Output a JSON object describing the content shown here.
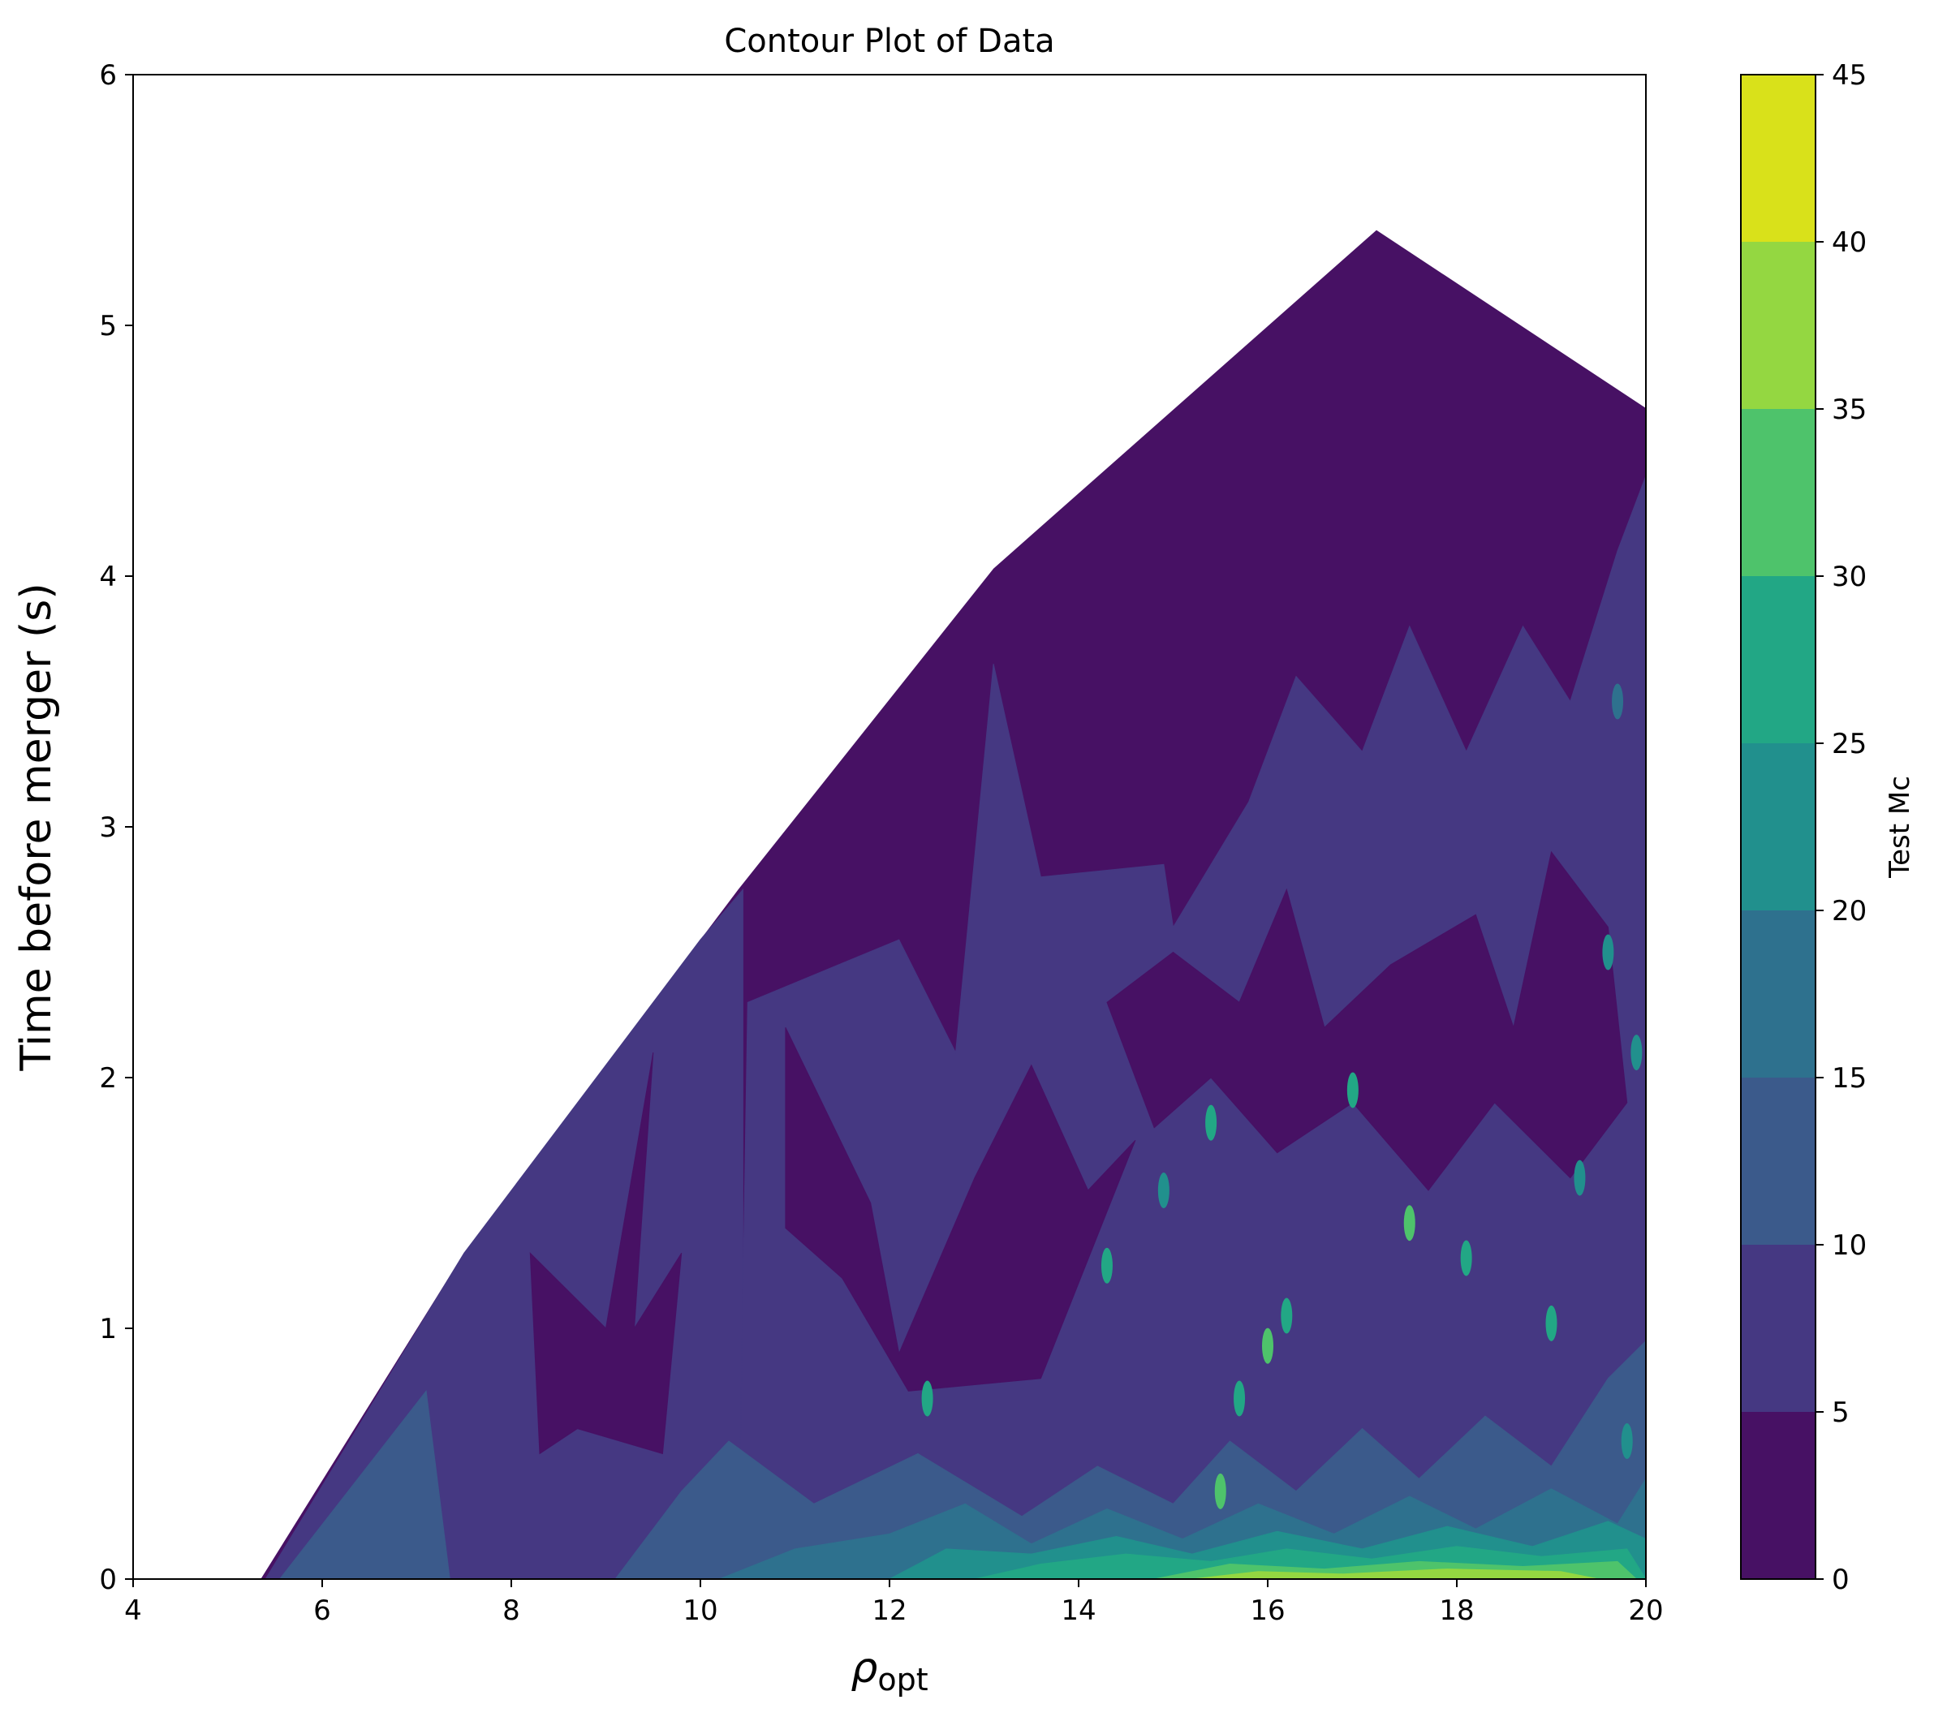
{
  "chart_data": {
    "type": "contourf",
    "title": "Contour Plot of Data",
    "xlabel": "ρ",
    "xlabel_subscript": "opt",
    "ylabel": "Time before merger (s)",
    "xlim": [
      4,
      20
    ],
    "ylim": [
      0,
      6
    ],
    "xticks": [
      "4",
      "6",
      "8",
      "10",
      "12",
      "14",
      "16",
      "18",
      "20"
    ],
    "yticks": [
      "0",
      "1",
      "2",
      "3",
      "4",
      "5",
      "6"
    ],
    "colorbar": {
      "label": "Test Mc",
      "levels": [
        0,
        5,
        10,
        15,
        20,
        25,
        30,
        35,
        40,
        45
      ],
      "tick_labels": [
        "0",
        "5",
        "10",
        "15",
        "20",
        "25",
        "30",
        "35",
        "40",
        "45"
      ],
      "colors": [
        "#471164",
        "#453882",
        "#3b5a8b",
        "#2e718e",
        "#21908d",
        "#22a785",
        "#4ec36b",
        "#94d741",
        "#d9e11a"
      ]
    },
    "data_hull": [
      [
        5.35,
        0.0
      ],
      [
        7.5,
        1.3
      ],
      [
        10.4,
        2.75
      ],
      [
        13.1,
        4.03
      ],
      [
        17.15,
        5.38
      ],
      [
        20.0,
        4.67
      ],
      [
        20.0,
        0.0
      ]
    ],
    "regions": [
      {
        "level": "5-10",
        "polygon": [
          [
            5.4,
            0.0
          ],
          [
            7.5,
            1.3
          ],
          [
            10.0,
            2.55
          ],
          [
            10.45,
            2.75
          ],
          [
            10.45,
            0.0
          ]
        ]
      },
      {
        "level": "5-10",
        "polygon": [
          [
            10.4,
            0.0
          ],
          [
            10.5,
            2.3
          ],
          [
            12.1,
            2.55
          ],
          [
            12.7,
            2.1
          ],
          [
            13.1,
            3.65
          ],
          [
            13.6,
            2.8
          ],
          [
            14.9,
            2.85
          ],
          [
            15.0,
            2.6
          ],
          [
            15.8,
            3.1
          ],
          [
            16.3,
            3.6
          ],
          [
            17.0,
            3.3
          ],
          [
            17.5,
            3.8
          ],
          [
            18.1,
            3.3
          ],
          [
            18.7,
            3.8
          ],
          [
            19.2,
            3.5
          ],
          [
            19.7,
            4.1
          ],
          [
            20.0,
            4.4
          ],
          [
            20.0,
            0.0
          ]
        ]
      },
      {
        "level": "0-5",
        "polygon": [
          [
            8.2,
            1.3
          ],
          [
            9.0,
            1.0
          ],
          [
            9.5,
            2.1
          ],
          [
            9.3,
            1.0
          ],
          [
            9.8,
            1.3
          ],
          [
            9.6,
            0.5
          ],
          [
            8.7,
            0.6
          ],
          [
            8.3,
            0.5
          ]
        ]
      },
      {
        "level": "0-5",
        "polygon": [
          [
            10.9,
            2.2
          ],
          [
            11.8,
            1.5
          ],
          [
            12.1,
            0.9
          ],
          [
            12.9,
            1.6
          ],
          [
            13.5,
            2.05
          ],
          [
            14.1,
            1.55
          ],
          [
            14.6,
            1.75
          ],
          [
            13.6,
            0.8
          ],
          [
            12.2,
            0.75
          ],
          [
            11.5,
            1.2
          ],
          [
            10.9,
            1.4
          ]
        ]
      },
      {
        "level": "0-5",
        "polygon": [
          [
            14.3,
            2.3
          ],
          [
            15.0,
            2.5
          ],
          [
            15.7,
            2.3
          ],
          [
            16.2,
            2.75
          ],
          [
            16.6,
            2.2
          ],
          [
            17.3,
            2.45
          ],
          [
            18.2,
            2.65
          ],
          [
            18.6,
            2.2
          ],
          [
            19.0,
            2.9
          ],
          [
            19.6,
            2.6
          ],
          [
            19.8,
            1.9
          ],
          [
            19.2,
            1.6
          ],
          [
            18.4,
            1.9
          ],
          [
            17.7,
            1.55
          ],
          [
            16.9,
            1.9
          ],
          [
            16.1,
            1.7
          ],
          [
            15.4,
            2.0
          ],
          [
            14.8,
            1.8
          ]
        ]
      },
      {
        "level": "10-15",
        "polygon": [
          [
            5.55,
            0.0
          ],
          [
            7.1,
            0.75
          ],
          [
            7.35,
            0.0
          ]
        ]
      },
      {
        "level": "10-15",
        "polygon": [
          [
            9.1,
            0.0
          ],
          [
            9.8,
            0.35
          ],
          [
            10.3,
            0.55
          ],
          [
            11.2,
            0.3
          ],
          [
            12.3,
            0.5
          ],
          [
            13.4,
            0.25
          ],
          [
            14.2,
            0.45
          ],
          [
            15.0,
            0.3
          ],
          [
            15.6,
            0.55
          ],
          [
            16.3,
            0.35
          ],
          [
            17.0,
            0.6
          ],
          [
            17.6,
            0.4
          ],
          [
            18.3,
            0.65
          ],
          [
            19.0,
            0.45
          ],
          [
            19.6,
            0.8
          ],
          [
            20.0,
            0.95
          ],
          [
            20.0,
            0.0
          ]
        ]
      },
      {
        "level": "15-20",
        "polygon": [
          [
            10.2,
            0.0
          ],
          [
            11.0,
            0.12
          ],
          [
            12.0,
            0.18
          ],
          [
            12.8,
            0.3
          ],
          [
            13.5,
            0.14
          ],
          [
            14.3,
            0.28
          ],
          [
            15.1,
            0.16
          ],
          [
            15.9,
            0.3
          ],
          [
            16.7,
            0.18
          ],
          [
            17.5,
            0.33
          ],
          [
            18.2,
            0.2
          ],
          [
            19.0,
            0.36
          ],
          [
            19.7,
            0.22
          ],
          [
            20.0,
            0.4
          ],
          [
            20.0,
            0.0
          ]
        ]
      },
      {
        "level": "20-25",
        "polygon": [
          [
            12.0,
            0.0
          ],
          [
            12.6,
            0.12
          ],
          [
            13.5,
            0.1
          ],
          [
            14.4,
            0.17
          ],
          [
            15.2,
            0.1
          ],
          [
            16.1,
            0.19
          ],
          [
            17.0,
            0.12
          ],
          [
            17.9,
            0.21
          ],
          [
            18.8,
            0.13
          ],
          [
            19.6,
            0.23
          ],
          [
            20.0,
            0.16
          ],
          [
            20.0,
            0.0
          ]
        ]
      },
      {
        "level": "25-30",
        "polygon": [
          [
            12.9,
            0.0
          ],
          [
            13.6,
            0.06
          ],
          [
            14.5,
            0.1
          ],
          [
            15.4,
            0.07
          ],
          [
            16.2,
            0.12
          ],
          [
            17.1,
            0.08
          ],
          [
            18.0,
            0.13
          ],
          [
            18.9,
            0.09
          ],
          [
            19.8,
            0.12
          ],
          [
            20.0,
            0.0
          ]
        ]
      },
      {
        "level": "30-35",
        "polygon": [
          [
            14.8,
            0.0
          ],
          [
            15.6,
            0.06
          ],
          [
            16.6,
            0.04
          ],
          [
            17.6,
            0.07
          ],
          [
            18.7,
            0.05
          ],
          [
            19.7,
            0.07
          ],
          [
            19.9,
            0.0
          ]
        ]
      },
      {
        "level": "35-40",
        "polygon": [
          [
            15.2,
            0.0
          ],
          [
            15.9,
            0.03
          ],
          [
            16.8,
            0.02
          ],
          [
            17.9,
            0.04
          ],
          [
            19.1,
            0.03
          ],
          [
            19.5,
            0.0
          ]
        ]
      }
    ],
    "highlights": [
      {
        "x": 15.4,
        "y": 1.82,
        "level": "25-30"
      },
      {
        "x": 16.9,
        "y": 1.95,
        "level": "25-30"
      },
      {
        "x": 17.5,
        "y": 1.42,
        "level": "30-35"
      },
      {
        "x": 16.2,
        "y": 1.05,
        "level": "25-30"
      },
      {
        "x": 16.0,
        "y": 0.93,
        "level": "30-35"
      },
      {
        "x": 15.7,
        "y": 0.72,
        "level": "25-30"
      },
      {
        "x": 14.3,
        "y": 1.25,
        "level": "25-30"
      },
      {
        "x": 12.4,
        "y": 0.72,
        "level": "25-30"
      },
      {
        "x": 18.1,
        "y": 1.28,
        "level": "25-30"
      },
      {
        "x": 19.0,
        "y": 1.02,
        "level": "25-30"
      },
      {
        "x": 19.3,
        "y": 1.6,
        "level": "20-25"
      },
      {
        "x": 19.6,
        "y": 2.5,
        "level": "20-25"
      },
      {
        "x": 19.9,
        "y": 2.1,
        "level": "20-25"
      },
      {
        "x": 15.5,
        "y": 0.35,
        "level": "30-35"
      },
      {
        "x": 19.8,
        "y": 0.55,
        "level": "20-25"
      },
      {
        "x": 14.9,
        "y": 1.55,
        "level": "20-25"
      },
      {
        "x": 19.7,
        "y": 3.5,
        "level": "15-20"
      }
    ]
  }
}
